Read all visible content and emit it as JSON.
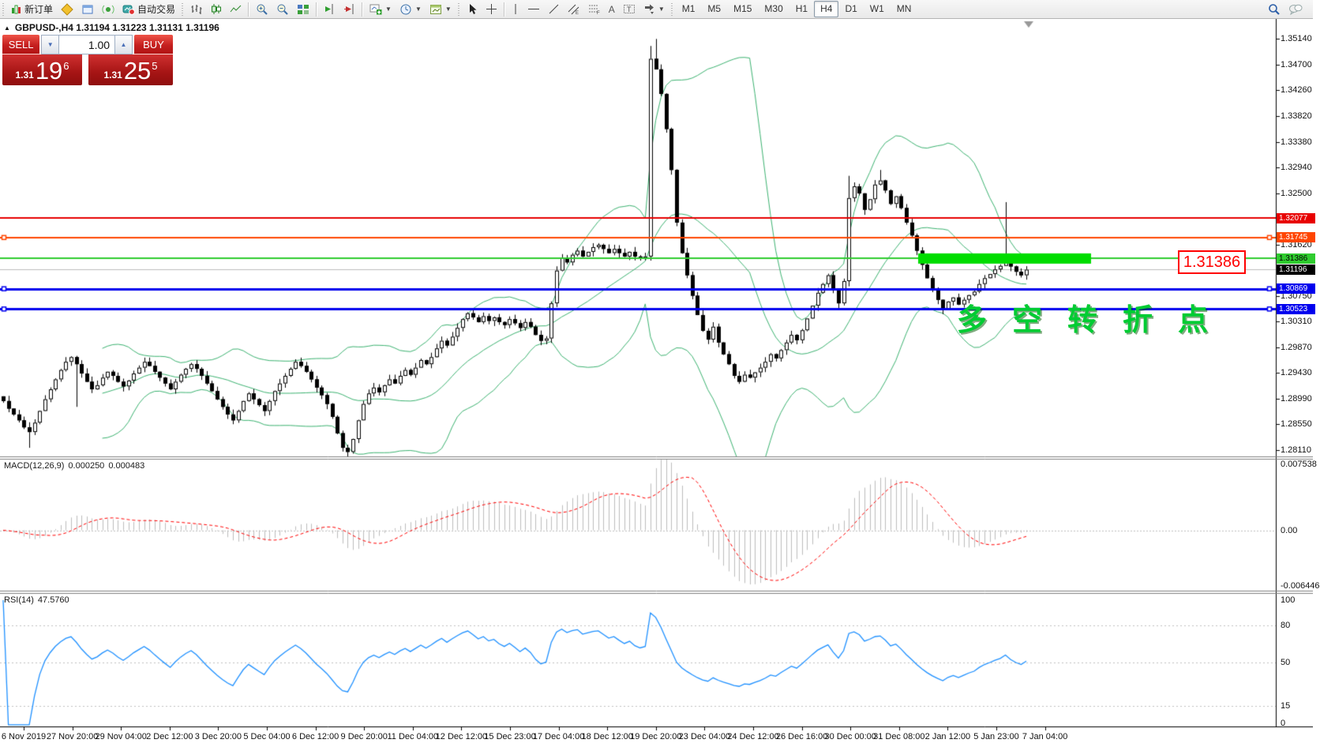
{
  "toolbar": {
    "new_order_label": "新订单",
    "auto_trading_label": "自动交易",
    "caret_glyph": "▼",
    "timeframes": [
      "M1",
      "M5",
      "M15",
      "M30",
      "H1",
      "H4",
      "D1",
      "W1",
      "MN"
    ],
    "active_timeframe": "H4"
  },
  "trade_panel": {
    "sell_label": "SELL",
    "buy_label": "BUY",
    "volume": "1.00",
    "volume_down_glyph": "▼",
    "volume_up_glyph": "▲",
    "sell_price_small": "1.31",
    "sell_price_big": "19",
    "sell_price_sup": "6",
    "buy_price_small": "1.31",
    "buy_price_big": "25",
    "buy_price_sup": "5"
  },
  "chart_header": {
    "collapse_arrow": "▲",
    "symbol_info": "GBPUSD-,H4  1.31194 1.31223 1.31131 1.31196"
  },
  "chart_data": {
    "type": "candlestick",
    "symbol": "GBPUSD",
    "timeframe": "H4",
    "ohlc_values": {
      "open": "1.31194",
      "high": "1.31223",
      "low": "1.31131",
      "close": "1.31196"
    },
    "ylim": [
      1.28003,
      1.35495
    ],
    "price_ticks": [
      "1.35140",
      "1.34700",
      "1.34260",
      "1.33820",
      "1.33380",
      "1.32940",
      "1.32500",
      "1.31620",
      "1.30750",
      "1.30310",
      "1.29870",
      "1.29430",
      "1.28990",
      "1.28550",
      "1.28110"
    ],
    "first_open": 1.2903,
    "closes": [
      1.2895,
      1.2882,
      1.2872,
      1.2862,
      1.285,
      1.2842,
      1.2858,
      1.2878,
      1.2898,
      1.2915,
      1.2932,
      1.2948,
      1.2962,
      1.297,
      1.2958,
      1.2942,
      1.2928,
      1.2915,
      1.2922,
      1.2935,
      1.2945,
      1.2938,
      1.2928,
      1.292,
      1.293,
      1.2942,
      1.2952,
      1.2962,
      1.2955,
      1.2945,
      1.2935,
      1.2925,
      1.2915,
      1.2928,
      1.294,
      1.295,
      1.2958,
      1.295,
      1.2938,
      1.2925,
      1.2912,
      1.2898,
      1.2885,
      1.2872,
      1.2862,
      1.2878,
      1.2895,
      1.2908,
      1.2898,
      1.2888,
      1.2878,
      1.2895,
      1.2912,
      1.2925,
      1.2938,
      1.295,
      1.2962,
      1.2955,
      1.2945,
      1.2932,
      1.2918,
      1.2905,
      1.289,
      1.2868,
      1.284,
      1.2815,
      1.2808,
      1.283,
      1.2862,
      1.289,
      1.2908,
      1.2918,
      1.291,
      1.2922,
      1.2932,
      1.2925,
      1.2938,
      1.2948,
      1.294,
      1.2952,
      1.2965,
      1.2958,
      1.297,
      1.2985,
      1.2998,
      1.299,
      1.3005,
      1.302,
      1.3035,
      1.3045,
      1.3038,
      1.303,
      1.304,
      1.3032,
      1.3038,
      1.303,
      1.3025,
      1.3035,
      1.3028,
      1.302,
      1.303,
      1.3022,
      1.3008,
      1.2998,
      1.3002,
      1.3062,
      1.3118,
      1.314,
      1.3132,
      1.3145,
      1.3152,
      1.3142,
      1.315,
      1.3158,
      1.3162,
      1.3155,
      1.3148,
      1.3155,
      1.3148,
      1.3142,
      1.315,
      1.3142,
      1.3138,
      1.3142,
      1.348,
      1.3462,
      1.342,
      1.336,
      1.329,
      1.32,
      1.3148,
      1.311,
      1.3075,
      1.3042,
      1.3015,
      1.3,
      1.3022,
      1.2995,
      1.2975,
      1.2958,
      1.2938,
      1.2928,
      1.294,
      1.2935,
      1.2944,
      1.2952,
      1.2962,
      1.2975,
      1.2968,
      1.2982,
      1.2995,
      1.3008,
      1.2999,
      1.3016,
      1.3036,
      1.3058,
      1.308,
      1.3095,
      1.311,
      1.3085,
      1.3062,
      1.31,
      1.3242,
      1.3262,
      1.325,
      1.3222,
      1.324,
      1.3265,
      1.3272,
      1.3255,
      1.3232,
      1.3245,
      1.3225,
      1.32,
      1.3178,
      1.3152,
      1.3128,
      1.3105,
      1.3085,
      1.3068,
      1.3052,
      1.3065,
      1.3072,
      1.306,
      1.3068,
      1.3076,
      1.3082,
      1.3095,
      1.3105,
      1.3112,
      1.312,
      1.3126,
      1.3138,
      1.3125,
      1.3116,
      1.311,
      1.31196
    ],
    "wick_overrides": {
      "5": {
        "low": 1.2815
      },
      "14": {
        "low": 1.2885
      },
      "66": {
        "low": 1.2798
      },
      "124": {
        "high": 1.3502,
        "low": 1.3135
      },
      "125": {
        "high": 1.3514
      },
      "162": {
        "high": 1.328
      },
      "168": {
        "high": 1.329
      },
      "192": {
        "high": 1.3235
      }
    },
    "indicators": {
      "bollinger": {
        "period": 20,
        "deviation": 2,
        "color": "#3cb371"
      }
    },
    "levels": [
      {
        "value": 1.32077,
        "label": "1.32077",
        "color": "#e80000",
        "badge_text_color": "#ffffff",
        "width": 2,
        "markers": false
      },
      {
        "value": 1.31745,
        "label": "1.31745",
        "color": "#ff4500",
        "badge_text_color": "#ffffff",
        "width": 2,
        "markers": true
      },
      {
        "value": 1.31386,
        "label": "1.31386",
        "color": "#2fcc2f",
        "badge_text_color": "#000000",
        "width": 2,
        "markers": false
      },
      {
        "value": 1.30869,
        "label": "1.30869",
        "color": "#0000ee",
        "badge_text_color": "#ffffff",
        "width": 3,
        "markers": true
      },
      {
        "value": 1.30523,
        "label": "1.30523",
        "color": "#0000ee",
        "badge_text_color": "#ffffff",
        "width": 3,
        "markers": true
      }
    ],
    "current_price": {
      "value": 1.31196,
      "label": "1.31196",
      "line_color": "#bdbdbd",
      "badge_color": "#000000",
      "badge_text_color": "#ffffff"
    },
    "annotations": {
      "support_bar": {
        "price": 1.31386,
        "x_start": 1163,
        "x_end": 1382,
        "thickness": 13,
        "color": "#00dd00"
      },
      "price_label_box": {
        "text": "1.31386"
      },
      "note_text": {
        "text": "多空转折点"
      }
    },
    "macd": {
      "label": "MACD(12,26,9)",
      "value_main": "0.000250",
      "value_signal": "0.000483",
      "fast": 12,
      "slow": 26,
      "signal": 9,
      "axis_max": "0.007538",
      "axis_zero": "0.00",
      "axis_min": "-0.006446",
      "ylim": [
        -0.006897,
        0.008079
      ],
      "hist_color": "#bdbdbd",
      "signal_color": "#ff0000"
    },
    "rsi": {
      "label": "RSI(14)",
      "value": "47.5760",
      "period": 14,
      "axis_labels": [
        "100",
        "80",
        "50",
        "15",
        "0"
      ],
      "axis_values": [
        100,
        80,
        50,
        15,
        0
      ],
      "levels": [
        80,
        50,
        15
      ],
      "ylim": [
        -1.3,
        105.1
      ],
      "color": "#1e90ff"
    },
    "time_labels": [
      "6 Nov 2019",
      "27 Nov 20:00",
      "29 Nov 04:00",
      "2 Dec 12:00",
      "3 Dec 20:00",
      "5 Dec 04:00",
      "6 Dec 12:00",
      "9 Dec 20:00",
      "11 Dec 04:00",
      "12 Dec 12:00",
      "15 Dec 23:00",
      "17 Dec 04:00",
      "18 Dec 12:00",
      "19 Dec 20:00",
      "23 Dec 04:00",
      "24 Dec 12:00",
      "26 Dec 16:00",
      "30 Dec 00:00",
      "31 Dec 08:00",
      "2 Jan 12:00",
      "5 Jan 23:00",
      "7 Jan 04:00"
    ]
  }
}
